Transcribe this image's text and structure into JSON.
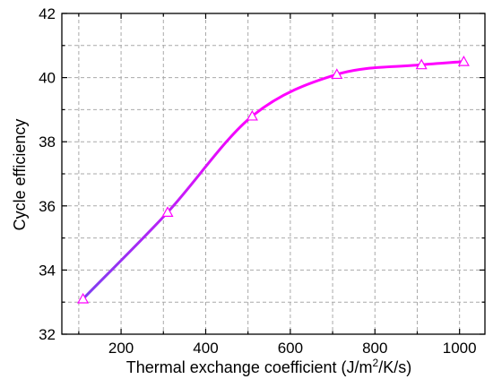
{
  "chart_data": {
    "type": "line",
    "xlabel_main": "Thermal exchange coefficient (J/m",
    "xlabel_sup": "2",
    "xlabel_tail": "/K/s)",
    "ylabel": "Cycle efficiency",
    "xlim": [
      60,
      1060
    ],
    "ylim": [
      32,
      42
    ],
    "x_ticks": [
      200,
      400,
      600,
      800,
      1000
    ],
    "y_ticks": [
      32,
      34,
      36,
      38,
      40,
      42
    ],
    "grid": true,
    "series": [
      {
        "x": [
          110,
          310,
          510,
          710,
          910,
          1010
        ],
        "y": [
          33.1,
          35.8,
          38.8,
          40.1,
          40.4,
          40.5
        ],
        "marker": "triangle-open",
        "line_color_start": "#7a3ff0",
        "line_color_end": "#ff00ff",
        "marker_color": "#ff00ff"
      }
    ]
  }
}
